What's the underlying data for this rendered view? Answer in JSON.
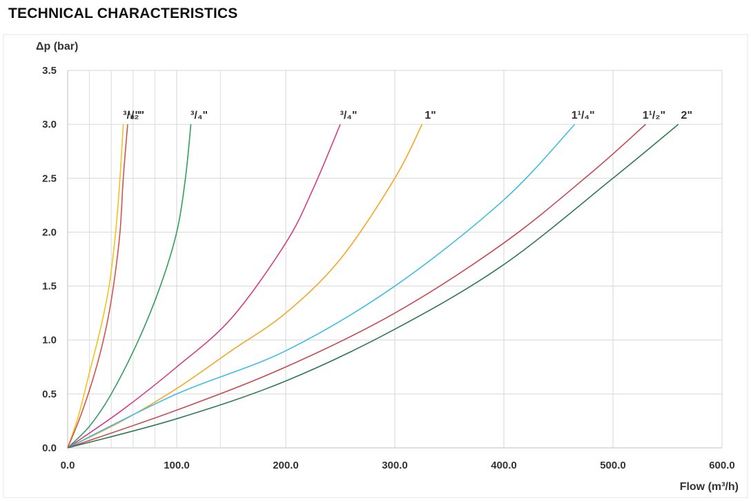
{
  "chart_data": {
    "type": "line",
    "title": "TECHNICAL CHARACTERISTICS",
    "xlabel": "Flow (m³/h)",
    "ylabel": "Δp (bar)",
    "xlim": [
      0,
      600
    ],
    "ylim": [
      0,
      3.5
    ],
    "x_ticks": [
      "0.0",
      "100.0",
      "200.0",
      "300.0",
      "400.0",
      "500.0",
      "600.0"
    ],
    "y_ticks": [
      "0.0",
      "0.5",
      "1.0",
      "1.5",
      "2.0",
      "2.5",
      "3.0",
      "3.5"
    ],
    "x_minor_grid": [
      20,
      40,
      60,
      80,
      140
    ],
    "grid": true,
    "series": [
      {
        "name": "³/₈\"",
        "color": "#f0c419",
        "points": [
          [
            0,
            0
          ],
          [
            10,
            0.3
          ],
          [
            20,
            0.7
          ],
          [
            30,
            1.1
          ],
          [
            38,
            1.5
          ],
          [
            44,
            2.0
          ],
          [
            48,
            2.5
          ],
          [
            51,
            3.0
          ]
        ]
      },
      {
        "name": "¹/₂\"",
        "color": "#d4504f",
        "points": [
          [
            0,
            0
          ],
          [
            12,
            0.3
          ],
          [
            25,
            0.7
          ],
          [
            35,
            1.1
          ],
          [
            42,
            1.5
          ],
          [
            48,
            2.0
          ],
          [
            51,
            2.5
          ],
          [
            55,
            3.0
          ]
        ]
      },
      {
        "name": "³/₄\"",
        "color": "#2e9e5e",
        "points": [
          [
            0,
            0
          ],
          [
            20,
            0.2
          ],
          [
            40,
            0.5
          ],
          [
            65,
            1.0
          ],
          [
            85,
            1.5
          ],
          [
            100,
            2.0
          ],
          [
            108,
            2.5
          ],
          [
            113,
            3.0
          ]
        ]
      },
      {
        "name": "³/₄\"",
        "color": "#d63c86",
        "points": [
          [
            0,
            0
          ],
          [
            50,
            0.35
          ],
          [
            100,
            0.75
          ],
          [
            150,
            1.2
          ],
          [
            200,
            1.9
          ],
          [
            225,
            2.4
          ],
          [
            250,
            3.0
          ]
        ]
      },
      {
        "name": "1\"",
        "color": "#f5a623",
        "points": [
          [
            0,
            0
          ],
          [
            50,
            0.25
          ],
          [
            100,
            0.55
          ],
          [
            150,
            0.9
          ],
          [
            200,
            1.25
          ],
          [
            250,
            1.75
          ],
          [
            300,
            2.5
          ],
          [
            325,
            3.0
          ]
        ]
      },
      {
        "name": "1¹/₄\"",
        "color": "#3bbde4",
        "points": [
          [
            0,
            0
          ],
          [
            100,
            0.5
          ],
          [
            200,
            0.9
          ],
          [
            300,
            1.5
          ],
          [
            400,
            2.3
          ],
          [
            465,
            3.0
          ]
        ]
      },
      {
        "name": "1¹/₂\"",
        "color": "#c8464e",
        "points": [
          [
            0,
            0
          ],
          [
            100,
            0.35
          ],
          [
            200,
            0.75
          ],
          [
            300,
            1.25
          ],
          [
            400,
            1.9
          ],
          [
            480,
            2.55
          ],
          [
            530,
            3.0
          ]
        ]
      },
      {
        "name": "2\"",
        "color": "#2b7a52",
        "points": [
          [
            0,
            0
          ],
          [
            100,
            0.27
          ],
          [
            200,
            0.62
          ],
          [
            300,
            1.1
          ],
          [
            400,
            1.7
          ],
          [
            500,
            2.5
          ],
          [
            560,
            3.0
          ]
        ]
      }
    ]
  }
}
